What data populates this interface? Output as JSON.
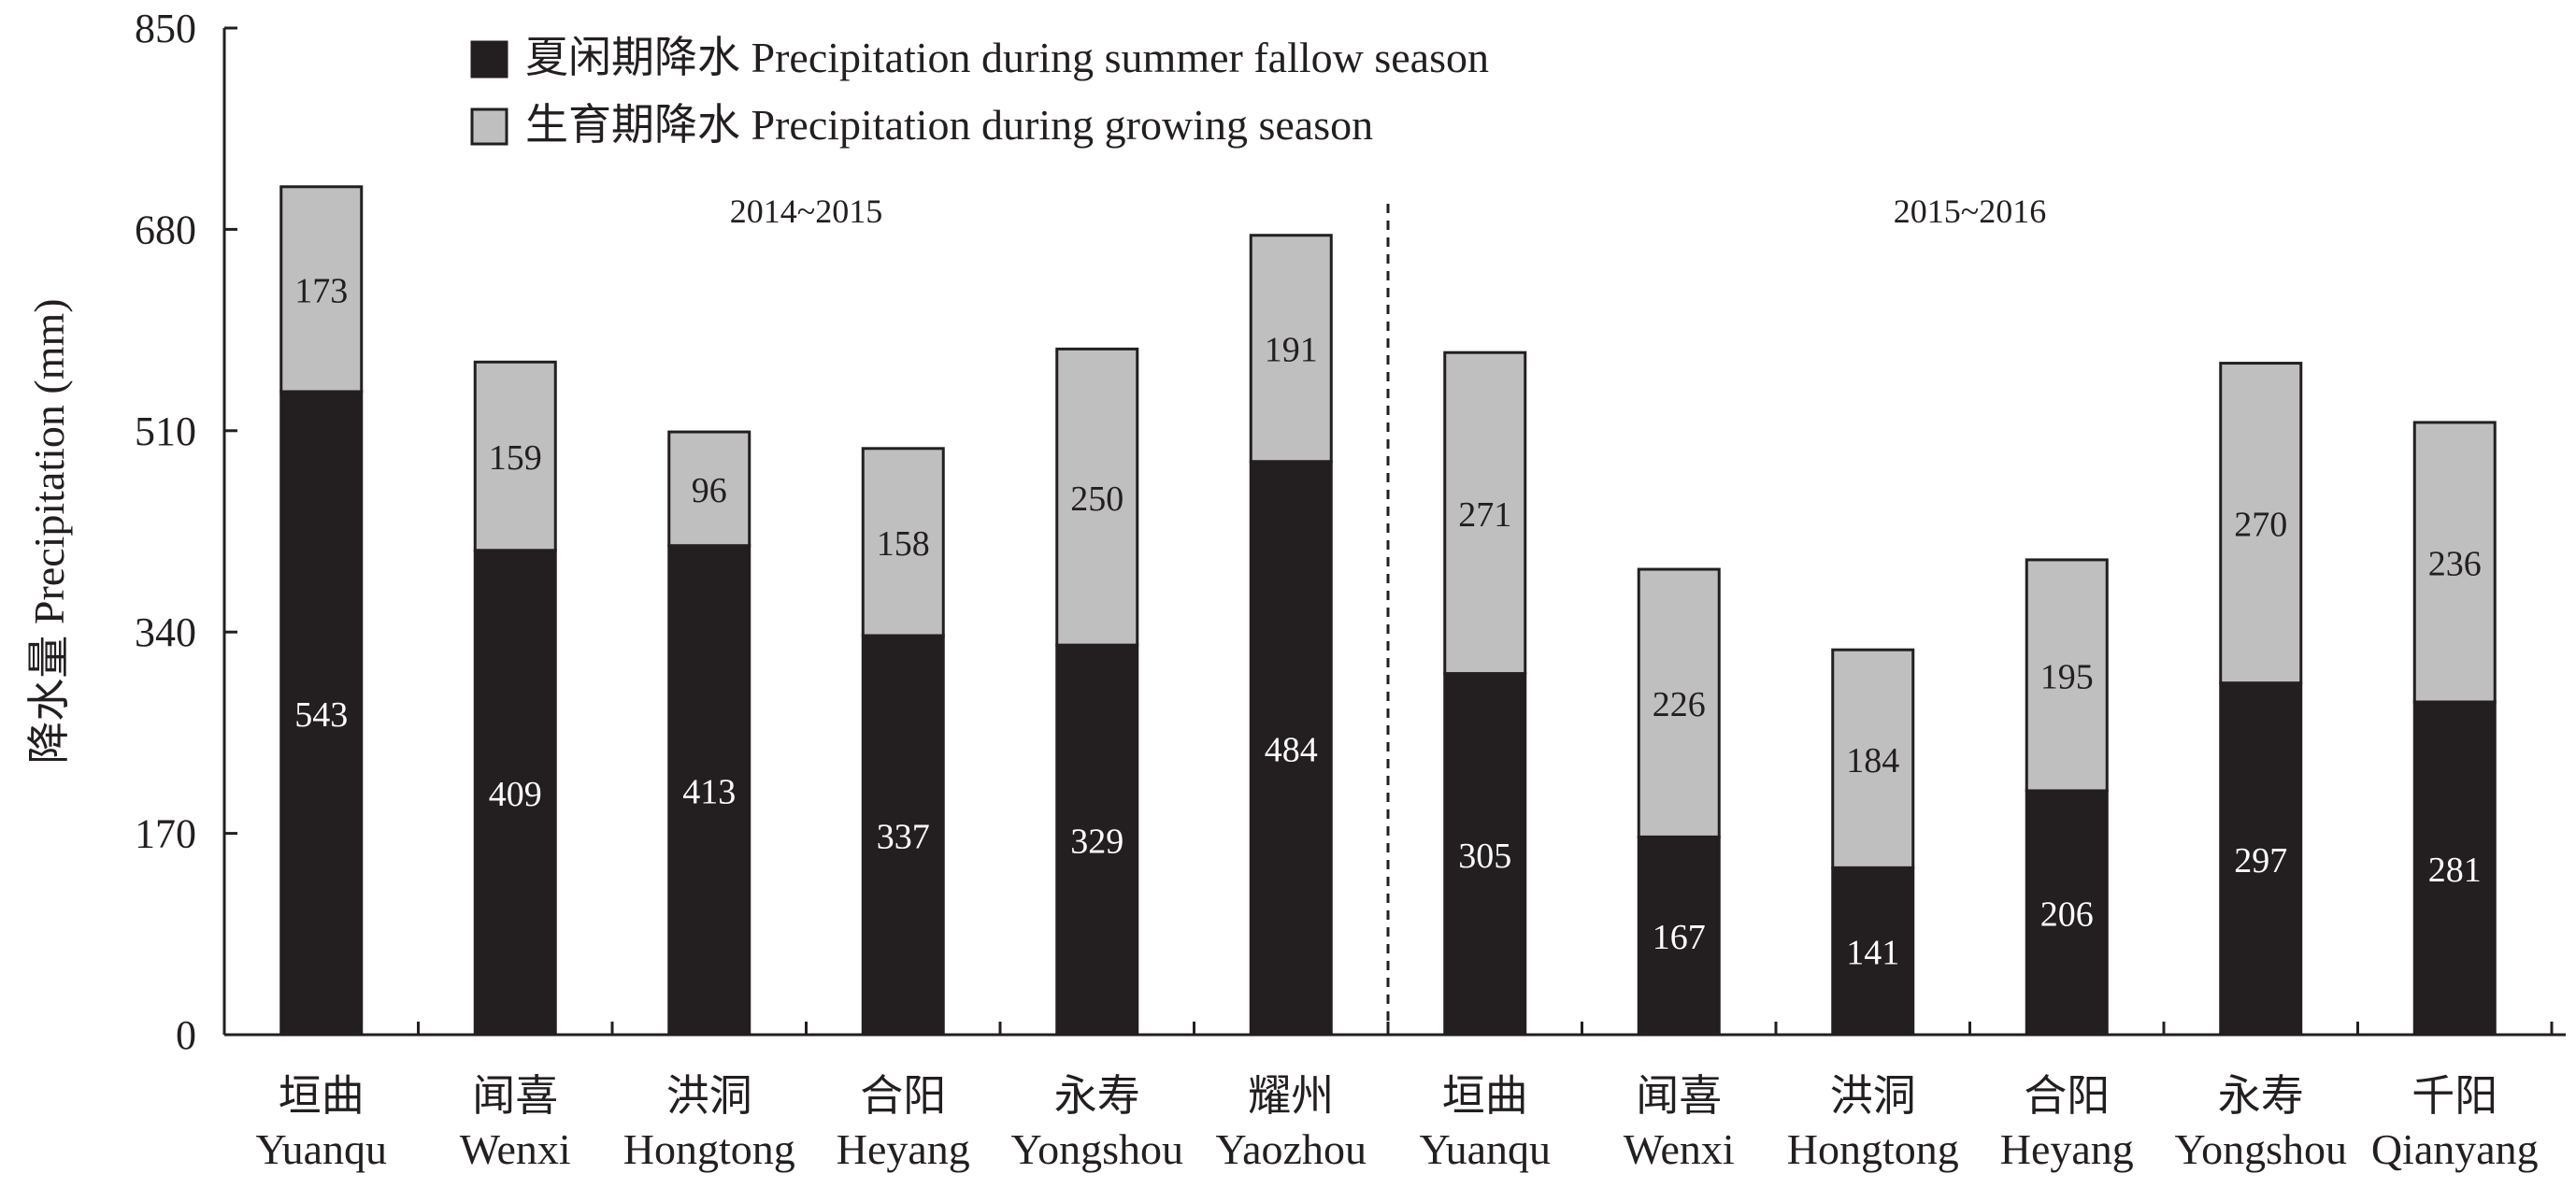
{
  "chart_data": {
    "type": "bar",
    "stacked": true,
    "ylabel": "降水量 Precipitation (mm)",
    "ylim": [
      0,
      850
    ],
    "yticks": [
      "0",
      "170",
      "340",
      "510",
      "680",
      "850"
    ],
    "grid": false,
    "legend_position": "top-left",
    "series": [
      {
        "name": "夏闲期降水 Precipitation during summer fallow season",
        "color": "#231f20",
        "label_color": "#ffffff",
        "values": [
          543,
          409,
          413,
          337,
          329,
          484,
          305,
          167,
          141,
          206,
          297,
          281
        ]
      },
      {
        "name": "生育期降水 Precipitation during growing season",
        "color": "#bfbfbf",
        "label_color": "#231f20",
        "values": [
          173,
          159,
          96,
          158,
          250,
          191,
          271,
          226,
          184,
          195,
          270,
          236
        ]
      }
    ],
    "categories": [
      {
        "zh": "垣曲",
        "en": "Yuanqu"
      },
      {
        "zh": "闻喜",
        "en": "Wenxi"
      },
      {
        "zh": "洪洞",
        "en": "Hongtong"
      },
      {
        "zh": "合阳",
        "en": "Heyang"
      },
      {
        "zh": "永寿",
        "en": "Yongshou"
      },
      {
        "zh": "耀州",
        "en": "Yaozhou"
      },
      {
        "zh": "垣曲",
        "en": "Yuanqu"
      },
      {
        "zh": "闻喜",
        "en": "Wenxi"
      },
      {
        "zh": "洪洞",
        "en": "Hongtong"
      },
      {
        "zh": "合阳",
        "en": "Heyang"
      },
      {
        "zh": "永寿",
        "en": "Yongshou"
      },
      {
        "zh": "千阳",
        "en": "Qianyang"
      }
    ],
    "groups": [
      {
        "label": "2014~2015",
        "start": 0,
        "end": 5
      },
      {
        "label": "2015~2016",
        "start": 6,
        "end": 11
      }
    ]
  }
}
